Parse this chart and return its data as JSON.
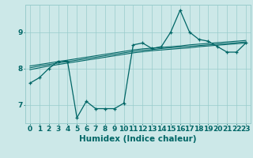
{
  "xlabel": "Humidex (Indice chaleur)",
  "ylabel": "",
  "bg_color": "#cce8e8",
  "line_color": "#006666",
  "x_values": [
    0,
    1,
    2,
    3,
    4,
    5,
    6,
    7,
    8,
    9,
    10,
    11,
    12,
    13,
    14,
    15,
    16,
    17,
    18,
    19,
    20,
    21,
    22,
    23
  ],
  "y_main": [
    7.6,
    7.75,
    8.0,
    8.2,
    8.2,
    6.65,
    7.1,
    6.9,
    6.9,
    6.9,
    7.05,
    8.65,
    8.7,
    8.55,
    8.6,
    9.0,
    9.6,
    9.0,
    8.8,
    8.75,
    8.6,
    8.45,
    8.45,
    8.7
  ],
  "y_reg1": [
    8.02,
    8.07,
    8.11,
    8.15,
    8.19,
    8.23,
    8.27,
    8.31,
    8.35,
    8.39,
    8.43,
    8.47,
    8.5,
    8.52,
    8.55,
    8.57,
    8.59,
    8.61,
    8.63,
    8.65,
    8.67,
    8.69,
    8.71,
    8.73
  ],
  "y_reg2": [
    7.97,
    8.02,
    8.07,
    8.11,
    8.15,
    8.19,
    8.23,
    8.27,
    8.31,
    8.35,
    8.39,
    8.43,
    8.46,
    8.49,
    8.51,
    8.53,
    8.55,
    8.57,
    8.6,
    8.62,
    8.64,
    8.66,
    8.68,
    8.7
  ],
  "y_reg3": [
    8.07,
    8.11,
    8.15,
    8.19,
    8.23,
    8.27,
    8.31,
    8.35,
    8.39,
    8.43,
    8.47,
    8.51,
    8.54,
    8.56,
    8.58,
    8.6,
    8.62,
    8.65,
    8.67,
    8.69,
    8.71,
    8.73,
    8.75,
    8.77
  ],
  "ylim": [
    6.5,
    9.75
  ],
  "yticks": [
    7,
    8,
    9
  ],
  "xticks": [
    0,
    1,
    2,
    3,
    4,
    5,
    6,
    7,
    8,
    9,
    10,
    11,
    12,
    13,
    14,
    15,
    16,
    17,
    18,
    19,
    20,
    21,
    22,
    23
  ],
  "grid_color": "#99cccc",
  "tick_fontsize": 6.5,
  "label_fontsize": 7.5
}
